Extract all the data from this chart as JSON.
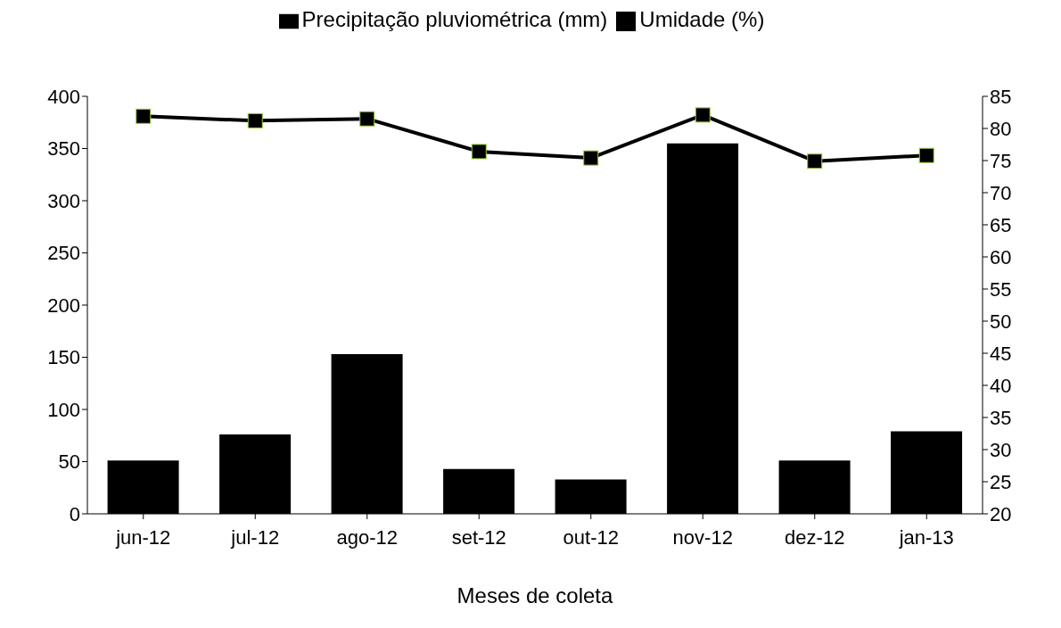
{
  "chart_data": {
    "type": "bar",
    "xlabel": "Meses de coleta",
    "categories": [
      "jun-12",
      "jul-12",
      "ago-12",
      "set-12",
      "out-12",
      "nov-12",
      "dez-12",
      "jan-13"
    ],
    "series": [
      {
        "name": "Precipitação pluviométrica (mm)",
        "color": "#000000",
        "values": [
          51,
          76,
          153,
          43,
          33,
          355,
          51,
          79
        ]
      },
      {
        "name": "Umidade (%)",
        "type": "line",
        "axis": "y2",
        "color": "#000000",
        "values": [
          81.9,
          81.2,
          81.5,
          76.4,
          75.4,
          82.1,
          74.9,
          75.8
        ]
      }
    ],
    "ylim": [
      0,
      400
    ],
    "yticks": [
      0,
      50,
      100,
      150,
      200,
      250,
      300,
      350,
      400
    ],
    "y2lim": [
      20,
      85
    ],
    "y2ticks": [
      20,
      25,
      30,
      35,
      40,
      45,
      50,
      55,
      60,
      65,
      70,
      75,
      80,
      85
    ],
    "legend": "top",
    "marker": "square",
    "grid": false
  }
}
